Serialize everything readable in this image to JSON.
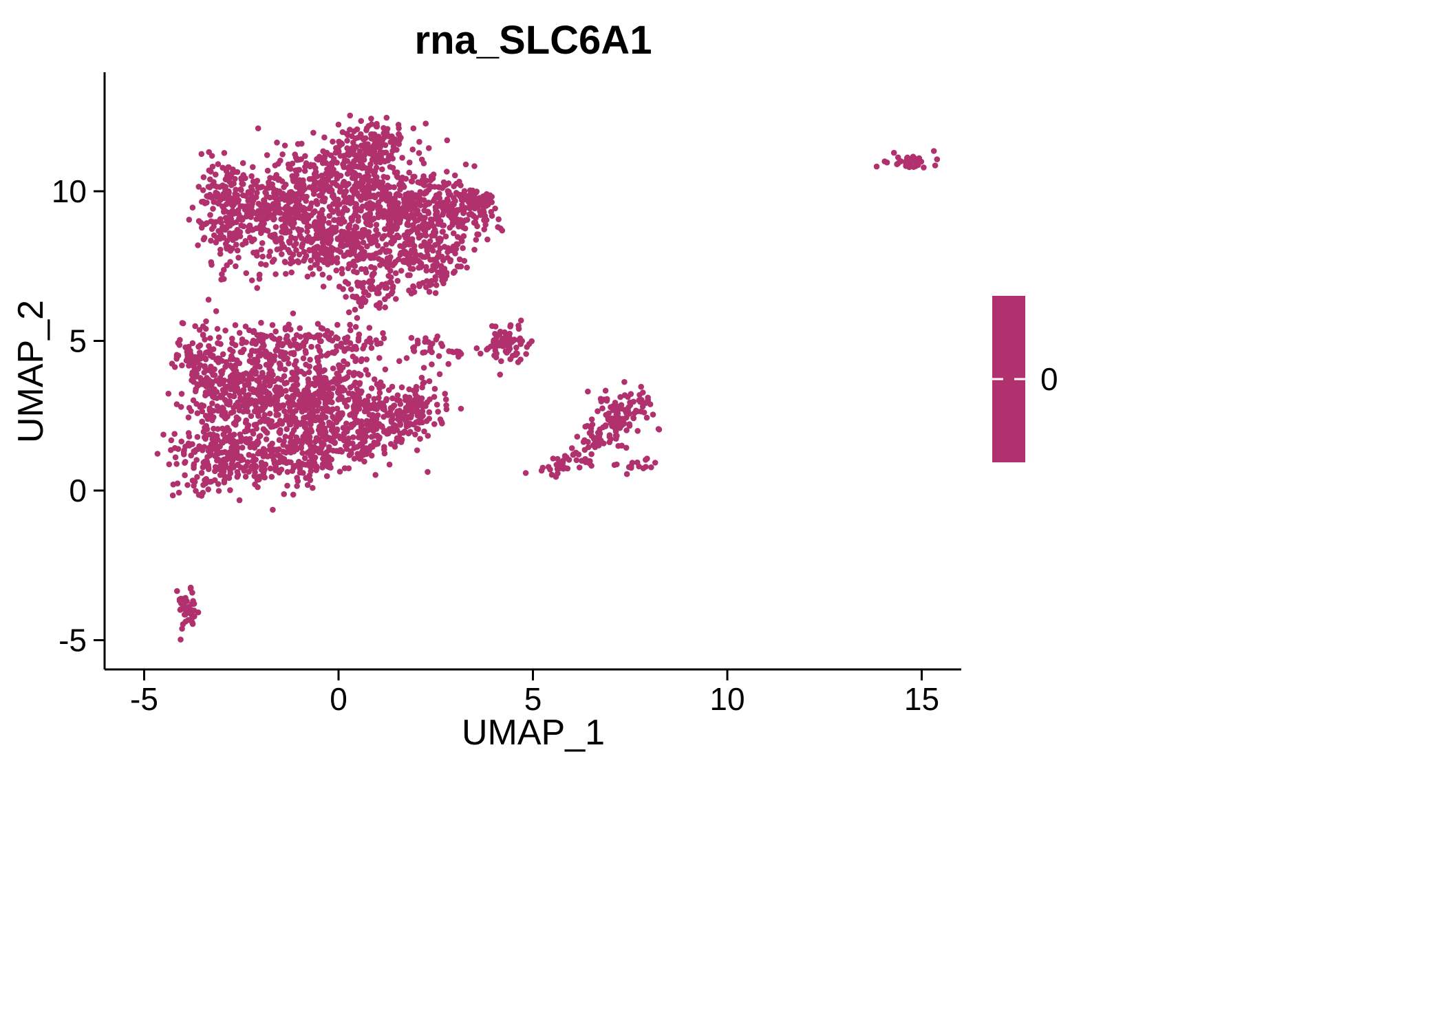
{
  "chart_data": {
    "type": "scatter",
    "title": "rna_SLC6A1",
    "xlabel": "UMAP_1",
    "ylabel": "UMAP_2",
    "xlim": [
      -6.1,
      16.1
    ],
    "ylim": [
      -6.2,
      13.6
    ],
    "x_ticks": [
      -5,
      0,
      5,
      10,
      15
    ],
    "y_ticks": [
      -5,
      0,
      5,
      10
    ],
    "grid": false,
    "legend_position": "right",
    "legend_type": "colorbar",
    "legend_label": "0",
    "point_color": "#B0316D",
    "background": "#ffffff",
    "cluster_format": [
      "center_x",
      "center_y",
      "sd_x",
      "sd_y",
      "n_points"
    ],
    "clusters": [
      [
        -2.6,
        9.6,
        0.5,
        0.8,
        130
      ],
      [
        -1.8,
        9.0,
        0.5,
        0.9,
        140
      ],
      [
        -1.0,
        9.8,
        0.5,
        0.8,
        150
      ],
      [
        -0.2,
        9.2,
        0.5,
        0.8,
        150
      ],
      [
        0.6,
        10.2,
        0.5,
        0.9,
        150
      ],
      [
        1.2,
        9.3,
        0.5,
        0.8,
        150
      ],
      [
        2.0,
        9.6,
        0.5,
        0.7,
        130
      ],
      [
        2.8,
        9.2,
        0.5,
        0.7,
        120
      ],
      [
        3.5,
        9.4,
        0.35,
        0.5,
        80
      ],
      [
        0.9,
        11.7,
        0.5,
        0.4,
        90
      ],
      [
        0.0,
        11.0,
        0.6,
        0.5,
        90
      ],
      [
        -0.6,
        8.0,
        0.5,
        0.5,
        80
      ],
      [
        0.6,
        7.9,
        0.5,
        0.5,
        80
      ],
      [
        1.8,
        8.0,
        0.5,
        0.4,
        60
      ],
      [
        2.6,
        7.8,
        0.4,
        0.4,
        50
      ],
      [
        -3.0,
        8.4,
        0.3,
        0.5,
        50
      ],
      [
        -2.9,
        9.9,
        0.35,
        0.5,
        60
      ],
      [
        0.6,
        6.6,
        0.35,
        0.5,
        50
      ],
      [
        1.3,
        6.9,
        0.3,
        0.4,
        30
      ],
      [
        2.3,
        6.9,
        0.25,
        0.35,
        25
      ],
      [
        -3.3,
        3.8,
        0.4,
        0.8,
        120
      ],
      [
        -2.6,
        3.0,
        0.5,
        0.9,
        150
      ],
      [
        -1.8,
        3.6,
        0.5,
        0.8,
        150
      ],
      [
        -1.0,
        3.0,
        0.5,
        0.8,
        150
      ],
      [
        -0.2,
        3.3,
        0.5,
        0.7,
        140
      ],
      [
        0.6,
        2.8,
        0.5,
        0.7,
        130
      ],
      [
        1.4,
        2.5,
        0.5,
        0.6,
        110
      ],
      [
        2.1,
        2.7,
        0.4,
        0.5,
        70
      ],
      [
        -3.5,
        1.2,
        0.4,
        0.6,
        100
      ],
      [
        -2.6,
        1.0,
        0.5,
        0.5,
        110
      ],
      [
        -1.6,
        1.1,
        0.5,
        0.5,
        110
      ],
      [
        -0.6,
        1.3,
        0.5,
        0.5,
        100
      ],
      [
        0.4,
        1.6,
        0.4,
        0.4,
        60
      ],
      [
        -3.8,
        4.7,
        0.25,
        0.5,
        40
      ],
      [
        -0.3,
        5.0,
        0.8,
        0.3,
        80
      ],
      [
        -1.6,
        4.9,
        0.6,
        0.3,
        60
      ],
      [
        2.2,
        4.7,
        0.3,
        0.25,
        25
      ],
      [
        3.0,
        4.6,
        0.2,
        0.2,
        10
      ],
      [
        4.35,
        4.85,
        0.3,
        0.35,
        70
      ],
      [
        7.3,
        2.5,
        0.35,
        0.4,
        90
      ],
      [
        6.6,
        1.8,
        0.3,
        0.3,
        30
      ],
      [
        6.1,
        1.2,
        0.25,
        0.25,
        20
      ],
      [
        5.6,
        0.7,
        0.2,
        0.15,
        20
      ],
      [
        7.7,
        0.8,
        0.25,
        0.15,
        15
      ],
      [
        7.8,
        2.9,
        0.15,
        0.35,
        15
      ],
      [
        14.6,
        11.0,
        0.35,
        0.12,
        35
      ],
      [
        -3.9,
        -3.9,
        0.12,
        0.35,
        45
      ]
    ]
  }
}
